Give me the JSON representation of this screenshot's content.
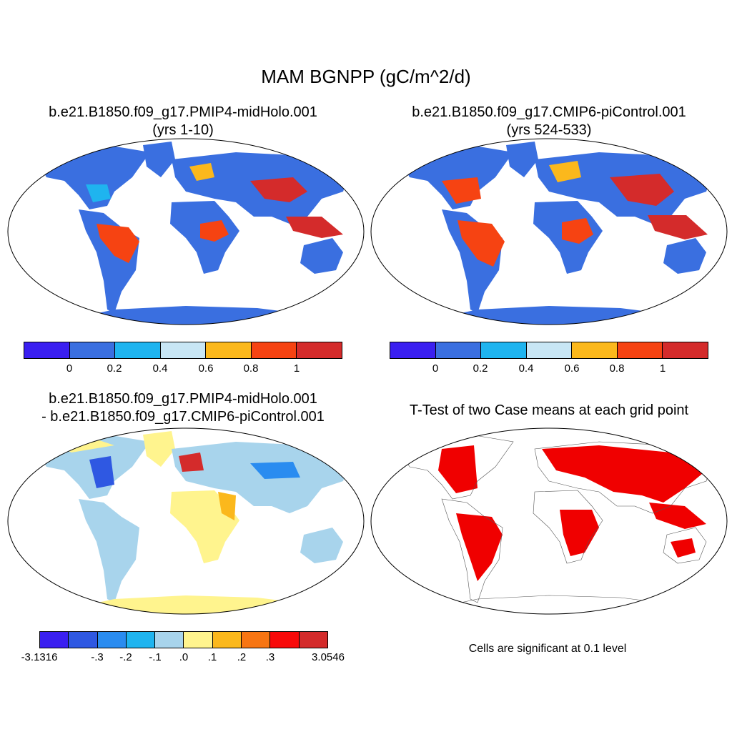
{
  "figure": {
    "title": "MAM BGNPP (gC/m^2/d)"
  },
  "panels": {
    "top_left": {
      "title_line1": "b.e21.B1850.f09_g17.PMIP4-midHolo.001",
      "title_line2": "(yrs 1-10)"
    },
    "top_right": {
      "title_line1": "b.e21.B1850.f09_g17.CMIP6-piControl.001",
      "title_line2": "(yrs 524-533)"
    },
    "bottom_left": {
      "title_line1": "b.e21.B1850.f09_g17.PMIP4-midHolo.001",
      "title_line2": "- b.e21.B1850.f09_g17.CMIP6-piControl.001"
    },
    "bottom_right": {
      "title_line1": "T-Test of two Case means at each grid point",
      "note": "Cells are significant at 0.1 level"
    }
  },
  "colorbars": {
    "mean": {
      "colors": [
        "#3a1ff0",
        "#3a6fe0",
        "#1fb4ef",
        "#c8e6f5",
        "#fbb81c",
        "#f64312",
        "#d42b2b"
      ],
      "labels": [
        "0",
        "0.2",
        "0.4",
        "0.6",
        "0.8",
        "1"
      ]
    },
    "difference": {
      "colors": [
        "#3a1ff0",
        "#2f58e2",
        "#2a8cf0",
        "#1fb4ef",
        "#a8d4ec",
        "#fff48e",
        "#fbb81c",
        "#f77512",
        "#f80a0a",
        "#d42b2b"
      ],
      "labels": [
        "-3.1316",
        "-.3",
        "-.2",
        "-.1",
        ".0",
        ".1",
        ".2",
        ".3",
        "3.0546"
      ]
    }
  },
  "map_colors": {
    "ocean": "#ffffff",
    "land_base_mean": "#3a6fe0",
    "land_base_diff": "#a8d4ec",
    "land_base_ttest": "#ffffff",
    "significant": "#f00000"
  }
}
